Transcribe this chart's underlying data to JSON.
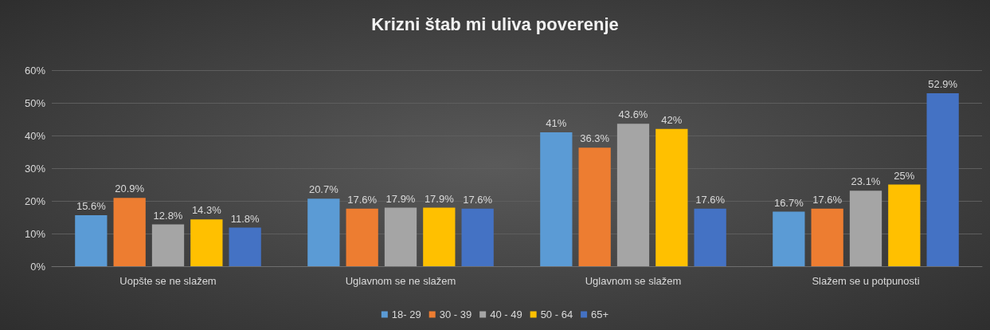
{
  "chart_data": {
    "type": "bar",
    "title": "Krizni štab mi uliva poverenje",
    "categories": [
      "Uopšte se ne slažem",
      "Uglavnom se ne slažem",
      "Uglavnom se slažem",
      "Slažem se u potpunosti"
    ],
    "series": [
      {
        "name": "18- 29",
        "color": "#5b9bd5",
        "values": [
          15.6,
          20.7,
          41,
          16.7
        ],
        "value_labels": [
          "15.6%",
          "20.7%",
          "41%",
          "16.7%"
        ]
      },
      {
        "name": "30 - 39",
        "color": "#ed7d31",
        "values": [
          20.9,
          17.6,
          36.3,
          17.6
        ],
        "value_labels": [
          "20.9%",
          "17.6%",
          "36.3%",
          "17.6%"
        ]
      },
      {
        "name": "40 - 49",
        "color": "#a5a5a5",
        "values": [
          12.8,
          17.9,
          43.6,
          23.1
        ],
        "value_labels": [
          "12.8%",
          "17.9%",
          "43.6%",
          "23.1%"
        ]
      },
      {
        "name": "50 - 64",
        "color": "#ffc000",
        "values": [
          14.3,
          17.9,
          42,
          25
        ],
        "value_labels": [
          "14.3%",
          "17.9%",
          "42%",
          "25%"
        ]
      },
      {
        "name": "65+",
        "color": "#4472c4",
        "values": [
          11.8,
          17.6,
          17.6,
          52.9
        ],
        "value_labels": [
          "11.8%",
          "17.6%",
          "17.6%",
          "52.9%"
        ]
      }
    ],
    "ylim": [
      0,
      60
    ],
    "yticks": [
      {
        "value": 0,
        "label": "0%"
      },
      {
        "value": 10,
        "label": "10%"
      },
      {
        "value": 20,
        "label": "20%"
      },
      {
        "value": 30,
        "label": "30%"
      },
      {
        "value": 40,
        "label": "40%"
      },
      {
        "value": 50,
        "label": "50%"
      },
      {
        "value": 60,
        "label": "60%"
      }
    ],
    "grid": "y",
    "legend": "bottom"
  }
}
